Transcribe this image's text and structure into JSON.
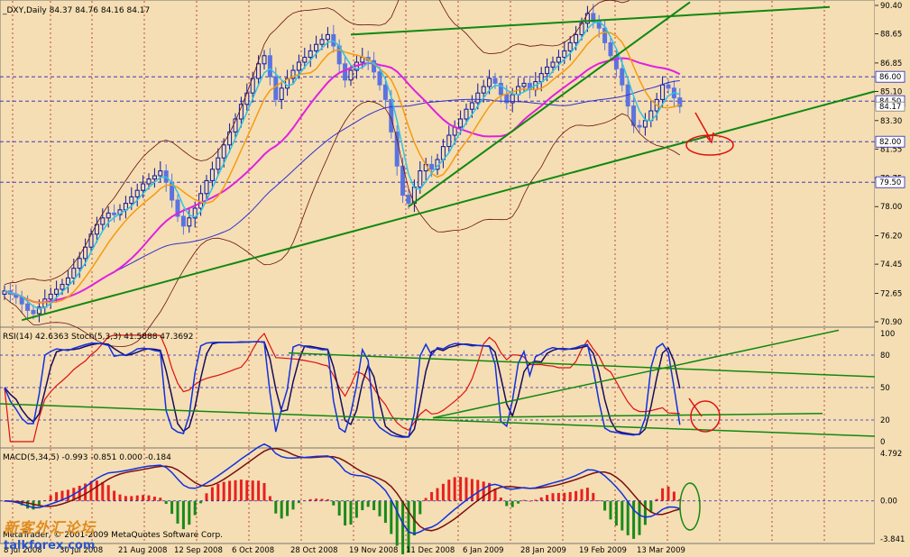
{
  "chart_data": {
    "type": "candlestick",
    "symbol_header": "_DXY,Daily",
    "ohlc_header": "84.37 84.76 84.16 84.17",
    "copyright": "MetaTrader, © 2001-2009 MetaQuotes Software Corp.",
    "watermark_cn": "新客外汇论坛",
    "watermark_en": "talkforex.com",
    "x_labels": [
      "8 Jul 2008",
      "30 Jul 2008",
      "21 Aug 2008",
      "12 Sep 2008",
      "6 Oct 2008",
      "28 Oct 2008",
      "19 Nov 2008",
      "11 Dec 2008",
      "6 Jan 2009",
      "28 Jan 2009",
      "19 Feb 2009",
      "13 Mar 2009"
    ],
    "price": {
      "y_ticks": [
        "90.40",
        "88.65",
        "86.85",
        "85.10",
        "83.30",
        "81.55",
        "79.75",
        "78.00",
        "76.20",
        "74.45",
        "72.65",
        "70.90"
      ],
      "ylim": [
        70.9,
        90.4
      ],
      "level_labels": [
        "86.00",
        "84.50",
        "82.00",
        "79.50"
      ],
      "current_price_label": "84.17",
      "closes": [
        72.8,
        72.6,
        72.4,
        72.0,
        71.6,
        71.4,
        71.8,
        72.3,
        72.6,
        72.9,
        73.2,
        73.6,
        74.2,
        74.8,
        75.5,
        76.3,
        76.9,
        77.3,
        77.6,
        77.5,
        77.8,
        78.2,
        78.6,
        79.0,
        79.4,
        79.7,
        79.9,
        80.2,
        79.5,
        78.4,
        77.4,
        76.8,
        77.3,
        77.9,
        78.8,
        79.6,
        80.3,
        81.0,
        81.8,
        82.6,
        83.4,
        84.3,
        85.0,
        85.9,
        86.8,
        87.3,
        86.0,
        84.6,
        85.3,
        85.9,
        86.4,
        86.9,
        87.2,
        87.6,
        88.0,
        88.3,
        88.6,
        87.9,
        86.8,
        85.8,
        86.4,
        86.9,
        87.2,
        87.0,
        86.3,
        85.5,
        84.6,
        82.6,
        80.5,
        78.7,
        78.2,
        79.2,
        80.2,
        80.6,
        80.3,
        80.9,
        81.7,
        82.4,
        82.9,
        83.4,
        84.0,
        84.4,
        85.0,
        85.4,
        85.9,
        85.6,
        84.9,
        84.4,
        84.9,
        85.4,
        85.6,
        85.2,
        85.7,
        86.2,
        86.6,
        86.9,
        87.2,
        87.6,
        88.1,
        88.6,
        89.3,
        89.9,
        89.4,
        89.0,
        88.1,
        87.3,
        86.5,
        85.5,
        84.2,
        83.0,
        82.9,
        83.3,
        83.9,
        84.6,
        85.5,
        85.3,
        84.7,
        84.17
      ],
      "ma_fast_color": "#2ec4e0",
      "ma_mid_color": "#f59b10",
      "ma_slow_color": "#e020e0",
      "ma_long_color": "#3030d0",
      "candle_up_color": "#0a15a0",
      "candle_down_color": "#5a73e0",
      "trend_color": "#118811",
      "annotation_color": "#e01010"
    },
    "rsi": {
      "label": "RSI(14) 42.6363  Stoch(5,3,3) 41.5888 47.3692",
      "y_ticks": [
        "100",
        "80",
        "50",
        "20",
        "0"
      ],
      "ylim": [
        0,
        100
      ],
      "rsi_color": "#dd1010",
      "stoch_main_color": "#1030e0",
      "stoch_signal_color": "#1a0a60"
    },
    "macd": {
      "label": "MACD(5,34,5) -0.993 -0.851 0.000 -0.184",
      "y_ticks": [
        "4.792",
        "0.00",
        "-3.841"
      ],
      "ylim": [
        -3.841,
        4.792
      ],
      "pos_bar_color": "#e82020",
      "neg_bar_color": "#1a8a1a",
      "line1_color": "#1030e0",
      "line2_color": "#7a1010"
    }
  }
}
